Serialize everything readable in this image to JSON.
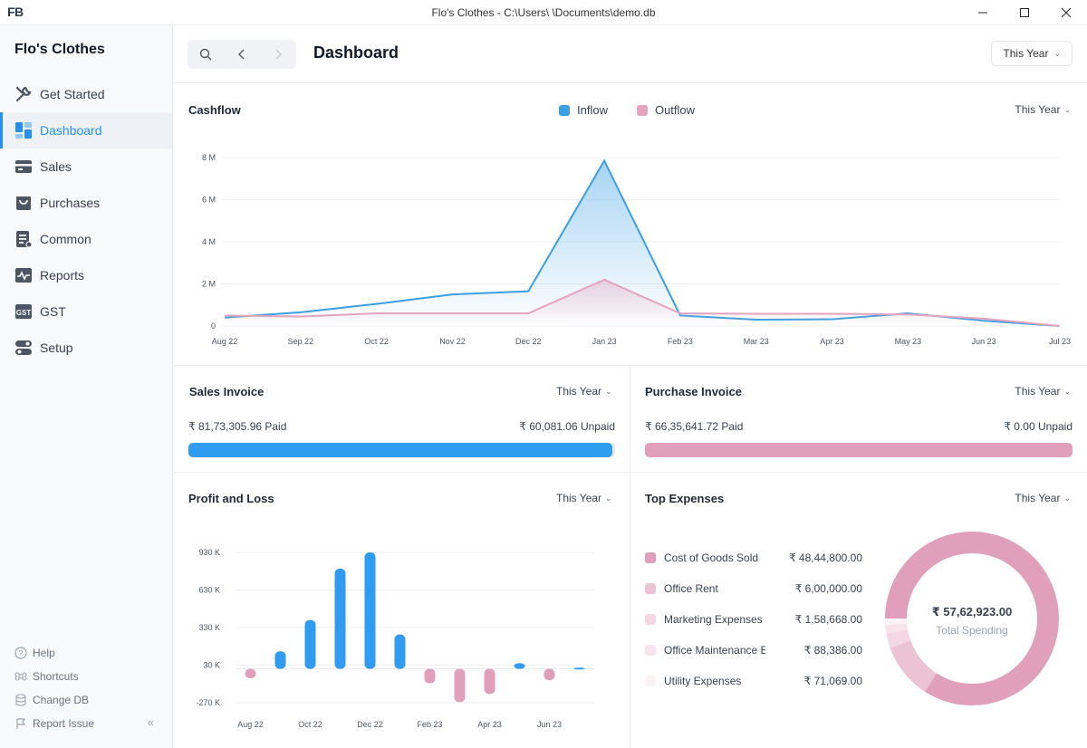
{
  "window": {
    "title": "Flo's Clothes - C:\\Users\\      \\Documents\\demo.db",
    "logo": "FB"
  },
  "sidebar": {
    "brand": "Flo's Clothes",
    "items": [
      {
        "label": "Get Started",
        "icon": "wrench-icon"
      },
      {
        "label": "Dashboard",
        "icon": "dashboard-icon"
      },
      {
        "label": "Sales",
        "icon": "sales-icon"
      },
      {
        "label": "Purchases",
        "icon": "purchases-icon"
      },
      {
        "label": "Common",
        "icon": "common-icon"
      },
      {
        "label": "Reports",
        "icon": "reports-icon"
      },
      {
        "label": "GST",
        "icon": "gst-icon"
      },
      {
        "label": "Setup",
        "icon": "setup-icon"
      }
    ],
    "footer": [
      {
        "label": "Help",
        "icon": "help-icon"
      },
      {
        "label": "Shortcuts",
        "icon": "shortcuts-icon"
      },
      {
        "label": "Change DB",
        "icon": "database-icon"
      },
      {
        "label": "Report Issue",
        "icon": "flag-icon"
      }
    ],
    "collapse": "«"
  },
  "header": {
    "title": "Dashboard",
    "period": "This Year"
  },
  "cashflow": {
    "title": "Cashflow",
    "period": "This Year",
    "legend": [
      {
        "name": "Inflow",
        "color": "#3b9fe3"
      },
      {
        "name": "Outflow",
        "color": "#e4a4bd"
      }
    ]
  },
  "sales_invoice": {
    "title": "Sales Invoice",
    "period": "This Year",
    "paid": "₹ 81,73,305.96 Paid",
    "unpaid": "₹ 60,081.06 Unpaid",
    "paid_fraction": 0.9927,
    "color": "#2f9cf0"
  },
  "purchase_invoice": {
    "title": "Purchase Invoice",
    "period": "This Year",
    "paid": "₹ 66,35,641.72 Paid",
    "unpaid": "₹ 0.00 Unpaid",
    "paid_fraction": 1.0,
    "color": "#e0a0bb"
  },
  "profit_loss": {
    "title": "Profit and Loss",
    "period": "This Year"
  },
  "top_expenses": {
    "title": "Top Expenses",
    "period": "This Year",
    "items": [
      {
        "name": "Cost of Goods Sold",
        "value": "₹ 48,44,800.00",
        "color": "#e0a0bb"
      },
      {
        "name": "Office Rent",
        "value": "₹ 6,00,000.00",
        "color": "#ecc3d3"
      },
      {
        "name": "Marketing Expenses",
        "value": "₹ 1,58,668.00",
        "color": "#f3d8e3"
      },
      {
        "name": "Office Maintenance E",
        "value": "₹ 88,386.00",
        "color": "#f7e5ec"
      },
      {
        "name": "Utility Expenses",
        "value": "₹ 71,069.00",
        "color": "#fbf2f5"
      }
    ],
    "total": "₹ 57,62,923.00",
    "total_label": "Total Spending"
  },
  "chart_data": [
    {
      "type": "line",
      "title": "Cashflow",
      "x": [
        "Aug 22",
        "Sep 22",
        "Oct 22",
        "Nov 22",
        "Dec 22",
        "Jan 23",
        "Feb 23",
        "Mar 23",
        "Apr 23",
        "May 23",
        "Jun 23",
        "Jul 23"
      ],
      "yticks": [
        "0",
        "2 M",
        "4 M",
        "6 M",
        "8 M"
      ],
      "ylim": [
        0,
        8
      ],
      "series": [
        {
          "name": "Inflow",
          "color": "#3b9fe3",
          "values": [
            0.4,
            0.65,
            1.05,
            1.5,
            1.65,
            7.85,
            0.5,
            0.3,
            0.32,
            0.6,
            0.25,
            0.0
          ]
        },
        {
          "name": "Outflow",
          "color": "#e4a4bd",
          "values": [
            0.5,
            0.45,
            0.6,
            0.6,
            0.6,
            2.2,
            0.6,
            0.58,
            0.58,
            0.55,
            0.35,
            0.0
          ]
        }
      ]
    },
    {
      "type": "bar",
      "title": "Profit and Loss",
      "categories": [
        "Aug 22",
        "Sep 22",
        "Oct 22",
        "Nov 22",
        "Dec 22",
        "Jan 23",
        "Feb 23",
        "Mar 23",
        "Apr 23",
        "May 23",
        "Jun 23",
        "Jul 23"
      ],
      "xticks": [
        "Aug 22",
        "Oct 22",
        "Dec 22",
        "Feb 23",
        "Apr 23",
        "Jun 23"
      ],
      "yticks": [
        "-270 K",
        "30 K",
        "330 K",
        "630 K",
        "930 K"
      ],
      "ylim": [
        -270,
        930
      ],
      "positive_color": "#2f9cf0",
      "negative_color": "#e0a0bb",
      "values": [
        -75,
        140,
        390,
        800,
        930,
        275,
        -115,
        -265,
        -200,
        45,
        -90,
        10
      ]
    },
    {
      "type": "pie",
      "title": "Top Expenses",
      "labels": [
        "Cost of Goods Sold",
        "Office Rent",
        "Marketing Expenses",
        "Office Maintenance E",
        "Utility Expenses"
      ],
      "values": [
        4844800,
        600000,
        158668,
        88386,
        71069
      ],
      "colors": [
        "#e0a0bb",
        "#ecc3d3",
        "#f3d8e3",
        "#f7e5ec",
        "#fbf2f5"
      ]
    }
  ]
}
